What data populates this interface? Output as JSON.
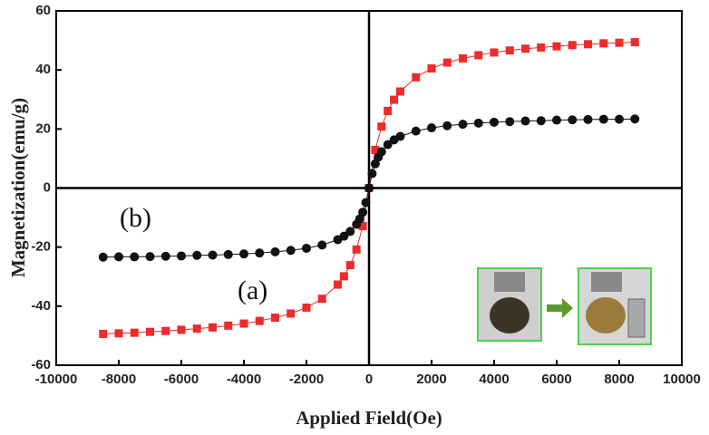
{
  "chart_data": {
    "type": "scatter",
    "xlabel": "Applied Field(Oe)",
    "ylabel": "Magnetization(emu/g)",
    "annotations": [
      "(a)",
      "(b)"
    ],
    "xlim": [
      -10000,
      10000
    ],
    "xticks": [
      -10000,
      -8000,
      -6000,
      -4000,
      -2000,
      0,
      2000,
      4000,
      6000,
      8000,
      10000
    ],
    "ylim": [
      -60,
      60
    ],
    "yticks": [
      -60,
      -40,
      -20,
      0,
      20,
      40,
      60
    ],
    "series": [
      {
        "color": "#ee2a2a",
        "marker": "square",
        "x": [
          -8500,
          -8000,
          -7500,
          -7000,
          -6500,
          -6000,
          -5500,
          -5000,
          -4500,
          -4000,
          -3500,
          -3000,
          -2500,
          -2000,
          -1500,
          -1000,
          -800,
          -600,
          -400,
          -200,
          0,
          200,
          400,
          600,
          800,
          1000,
          1500,
          2000,
          2500,
          3000,
          3500,
          4000,
          4500,
          5000,
          5500,
          6000,
          6500,
          7000,
          7500,
          8000,
          8500
        ],
        "values": [
          -49.4,
          -49.2,
          -49.0,
          -48.7,
          -48.4,
          -48.0,
          -47.6,
          -47.2,
          -46.6,
          -45.9,
          -45.0,
          -43.9,
          -42.5,
          -40.5,
          -37.5,
          -32.7,
          -29.9,
          -26.1,
          -20.8,
          -12.9,
          0,
          12.9,
          20.8,
          26.1,
          29.9,
          32.7,
          37.5,
          40.5,
          42.5,
          43.9,
          45.0,
          45.9,
          46.6,
          47.2,
          47.6,
          48.0,
          48.4,
          48.7,
          49.0,
          49.2,
          49.4
        ]
      },
      {
        "color": "#111111",
        "marker": "circle",
        "x": [
          -8500,
          -8000,
          -7500,
          -7000,
          -6500,
          -6000,
          -5500,
          -5000,
          -4500,
          -4000,
          -3500,
          -3000,
          -2500,
          -2000,
          -1500,
          -1000,
          -800,
          -600,
          -400,
          -300,
          -200,
          -100,
          0,
          100,
          200,
          300,
          400,
          600,
          800,
          1000,
          1500,
          2000,
          2500,
          3000,
          3500,
          4000,
          4500,
          5000,
          5500,
          6000,
          6500,
          7000,
          7500,
          8000,
          8500
        ],
        "values": [
          -23.4,
          -23.3,
          -23.3,
          -23.2,
          -23.1,
          -23.0,
          -22.8,
          -22.7,
          -22.5,
          -22.3,
          -22.0,
          -21.6,
          -21.1,
          -20.4,
          -19.3,
          -17.5,
          -16.3,
          -14.7,
          -12.3,
          -10.5,
          -8.2,
          -4.9,
          0,
          4.9,
          8.2,
          10.5,
          12.3,
          14.7,
          16.3,
          17.5,
          19.3,
          20.4,
          21.1,
          21.6,
          22.0,
          22.3,
          22.5,
          22.7,
          22.8,
          23.0,
          23.1,
          23.2,
          23.3,
          23.3,
          23.4
        ]
      }
    ]
  }
}
